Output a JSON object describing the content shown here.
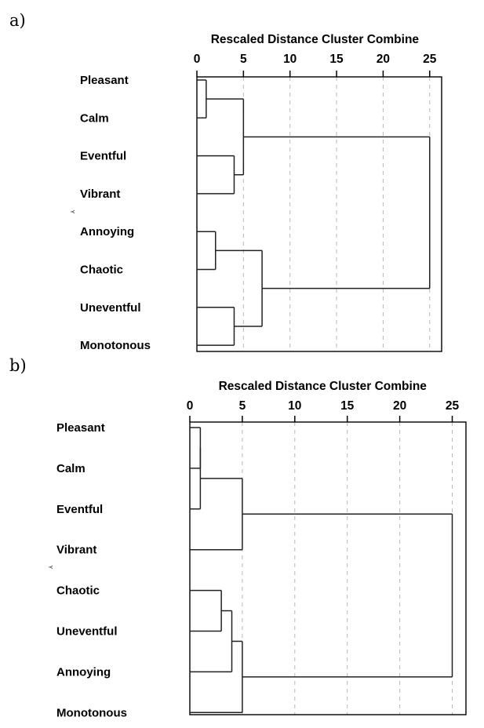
{
  "chart_data": [
    {
      "type": "dendrogram",
      "panel_label": "a)",
      "title": "Rescaled Distance Cluster Combine",
      "axis_marker": "Y",
      "xlim": [
        0,
        25
      ],
      "ticks": [
        0,
        5,
        10,
        15,
        20,
        25
      ],
      "grid": "dashed vertical",
      "leaves": [
        "Pleasant",
        "Calm",
        "Eventful",
        "Vibrant",
        "Annoying",
        "Chaotic",
        "Uneventful",
        "Monotonous"
      ],
      "merges": [
        {
          "id": "PC",
          "children": [
            "Pleasant",
            "Calm"
          ],
          "height": 1
        },
        {
          "id": "EV",
          "children": [
            "Eventful",
            "Vibrant"
          ],
          "height": 4
        },
        {
          "id": "PCEV",
          "children": [
            "PC",
            "EV"
          ],
          "height": 5
        },
        {
          "id": "AC",
          "children": [
            "Annoying",
            "Chaotic"
          ],
          "height": 2
        },
        {
          "id": "UM",
          "children": [
            "Uneventful",
            "Monotonous"
          ],
          "height": 4
        },
        {
          "id": "ACUM",
          "children": [
            "AC",
            "UM"
          ],
          "height": 7
        },
        {
          "id": "ALL",
          "children": [
            "PCEV",
            "ACUM"
          ],
          "height": 25
        }
      ]
    },
    {
      "type": "dendrogram",
      "panel_label": "b)",
      "title": "Rescaled Distance Cluster Combine",
      "axis_marker": "Y",
      "xlim": [
        0,
        25
      ],
      "ticks": [
        0,
        5,
        10,
        15,
        20,
        25
      ],
      "grid": "dashed vertical",
      "leaves": [
        "Pleasant",
        "Calm",
        "Eventful",
        "Vibrant",
        "Chaotic",
        "Uneventful",
        "Annoying",
        "Monotonous"
      ],
      "merges": [
        {
          "id": "PC",
          "children": [
            "Pleasant",
            "Calm"
          ],
          "height": 1
        },
        {
          "id": "PCE",
          "children": [
            "PC",
            "Eventful"
          ],
          "height": 1
        },
        {
          "id": "PCEV",
          "children": [
            "PCE",
            "Vibrant"
          ],
          "height": 5
        },
        {
          "id": "CU",
          "children": [
            "Chaotic",
            "Uneventful"
          ],
          "height": 3
        },
        {
          "id": "CUA",
          "children": [
            "CU",
            "Annoying"
          ],
          "height": 4
        },
        {
          "id": "CUAM",
          "children": [
            "CUA",
            "Monotonous"
          ],
          "height": 5
        },
        {
          "id": "ALL",
          "children": [
            "PCEV",
            "CUAM"
          ],
          "height": 25
        }
      ]
    }
  ]
}
